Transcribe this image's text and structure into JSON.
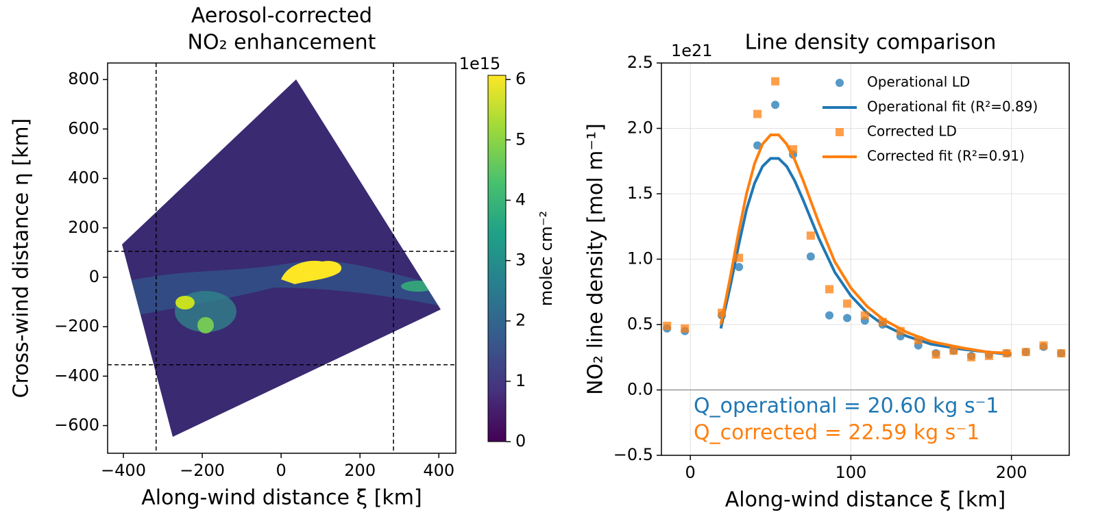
{
  "chart_data": [
    {
      "type": "image",
      "title": [
        "Aerosol-corrected",
        "NO₂ enhancement"
      ],
      "x_label": "Along-wind distance ξ [km]",
      "y_label": "Cross-wind distance η [km]",
      "xlim": [
        -440,
        443
      ],
      "ylim": [
        -712,
        867
      ],
      "xticks": [
        {
          "value": -400,
          "label": "−400"
        },
        {
          "value": -200,
          "label": "−200"
        },
        0,
        200,
        400
      ],
      "yticks": [
        {
          "value": -600,
          "label": "−600"
        },
        {
          "value": -400,
          "label": "−400"
        },
        {
          "value": -200,
          "label": "−200"
        },
        0,
        200,
        400,
        600,
        800
      ],
      "vlines": [
        -317,
        285
      ],
      "hlines": [
        105,
        -354
      ],
      "colorbar": {
        "label": "molec cm⁻²",
        "offset_text": "1e15",
        "lim": [
          0,
          6.07
        ],
        "ticks": [
          0,
          1,
          2,
          3,
          4,
          5,
          6
        ]
      }
    },
    {
      "type": "line",
      "title": "Line density comparison",
      "offset_text": "1e21",
      "x_label": "Along-wind distance ξ [km]",
      "y_label": "NO₂ line density [mol m⁻¹]",
      "xlim": [
        -18,
        236
      ],
      "ylim": [
        -0.5,
        2.5
      ],
      "xticks": [
        0,
        100,
        200
      ],
      "yticks": [
        {
          "value": -0.5,
          "label": "−0.5"
        },
        {
          "value": 0,
          "label": "0.0"
        },
        {
          "value": 0.5,
          "label": "0.5"
        },
        {
          "value": 1,
          "label": "1.0"
        },
        {
          "value": 1.5,
          "label": "1.5"
        },
        {
          "value": 2,
          "label": "2.0"
        },
        {
          "value": 2.5,
          "label": "2.5"
        }
      ],
      "grid": true,
      "zero_line": 0,
      "legend": "upper right",
      "series": [
        {
          "name": "Operational LD",
          "color": "#1f77b4",
          "marker": "circle",
          "x": [
            -14.5,
            -3.4,
            19.6,
            30.3,
            41.8,
            52.9,
            64,
            75,
            86.6,
            97.7,
            108.7,
            119.8,
            130.9,
            142,
            153,
            164,
            175,
            186,
            197,
            209,
            220,
            231
          ],
          "values": [
            0.47,
            0.45,
            0.57,
            0.94,
            1.87,
            2.18,
            1.8,
            1.02,
            0.57,
            0.55,
            0.53,
            0.5,
            0.41,
            0.34,
            0.28,
            0.3,
            0.26,
            0.27,
            0.28,
            0.29,
            0.33,
            0.28
          ]
        },
        {
          "name": "Operational fit (R²=0.89)",
          "color": "#1f77b4",
          "marker": "none",
          "x": [
            19,
            25,
            30,
            35,
            40,
            45,
            50,
            55,
            60,
            65,
            70,
            80,
            90,
            100,
            110,
            120,
            135,
            150,
            170,
            185,
            200
          ],
          "values": [
            0.47,
            0.8,
            1.1,
            1.38,
            1.58,
            1.71,
            1.77,
            1.77,
            1.71,
            1.6,
            1.46,
            1.16,
            0.9,
            0.72,
            0.59,
            0.5,
            0.41,
            0.35,
            0.31,
            0.29,
            0.27
          ]
        },
        {
          "name": "Corrected LD",
          "color": "#ff7f0e",
          "marker": "square",
          "x": [
            -14.5,
            -3.4,
            19.6,
            30.3,
            41.8,
            52.9,
            64,
            75,
            86.6,
            97.7,
            108.7,
            119.8,
            130.9,
            142,
            153,
            164,
            175,
            186,
            197,
            209,
            220,
            231
          ],
          "values": [
            0.49,
            0.47,
            0.59,
            1.01,
            2.11,
            2.36,
            1.84,
            1.18,
            0.77,
            0.66,
            0.57,
            0.52,
            0.45,
            0.38,
            0.27,
            0.3,
            0.25,
            0.26,
            0.28,
            0.29,
            0.34,
            0.28
          ]
        },
        {
          "name": "Corrected fit (R²=0.91)",
          "color": "#ff7f0e",
          "marker": "none",
          "x": [
            19,
            25,
            30,
            35,
            40,
            45,
            50,
            55,
            60,
            65,
            70,
            80,
            90,
            100,
            110,
            120,
            135,
            150,
            170,
            185,
            200
          ],
          "values": [
            0.5,
            0.87,
            1.2,
            1.5,
            1.73,
            1.88,
            1.95,
            1.95,
            1.88,
            1.76,
            1.61,
            1.28,
            0.98,
            0.78,
            0.64,
            0.54,
            0.44,
            0.37,
            0.32,
            0.29,
            0.28
          ]
        }
      ],
      "annotations": [
        {
          "text": "Q_operational = 20.60 kg s⁻1",
          "color": "#1f77b4"
        },
        {
          "text": "Q_corrected = 22.59 kg s⁻1",
          "color": "#ff7f0e"
        }
      ]
    }
  ]
}
